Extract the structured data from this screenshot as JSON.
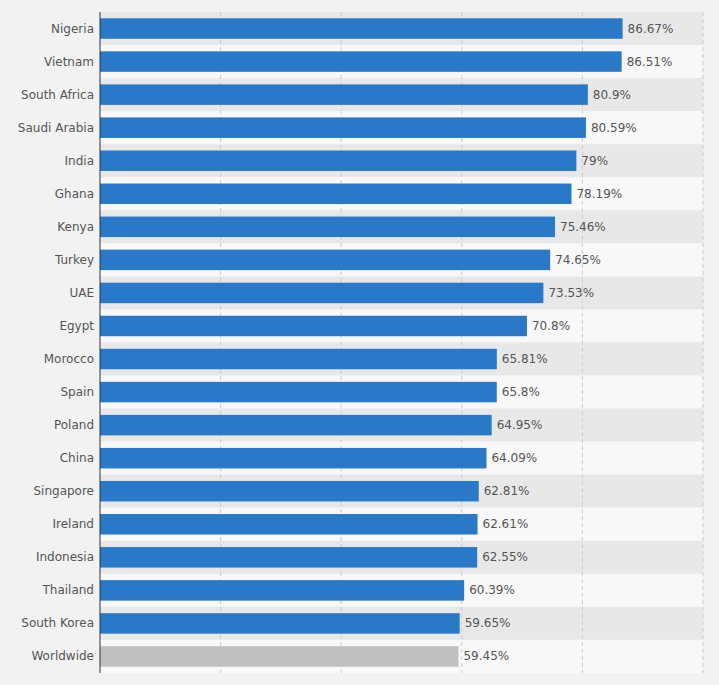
{
  "chart_data": {
    "type": "bar",
    "orientation": "horizontal",
    "categories": [
      "Nigeria",
      "Vietnam",
      "South Africa",
      "Saudi Arabia",
      "India",
      "Ghana",
      "Kenya",
      "Turkey",
      "UAE",
      "Egypt",
      "Morocco",
      "Spain",
      "Poland",
      "China",
      "Singapore",
      "Ireland",
      "Indonesia",
      "Thailand",
      "South Korea",
      "Worldwide"
    ],
    "values": [
      86.67,
      86.51,
      80.9,
      80.59,
      79.0,
      78.19,
      75.46,
      74.65,
      73.53,
      70.8,
      65.81,
      65.8,
      64.95,
      64.09,
      62.81,
      62.61,
      62.55,
      60.39,
      59.65,
      59.45
    ],
    "value_labels": [
      "86.67%",
      "86.51%",
      "80.9%",
      "80.59%",
      "79%",
      "78.19%",
      "75.46%",
      "74.65%",
      "73.53%",
      "70.8%",
      "65.81%",
      "65.8%",
      "64.95%",
      "64.09%",
      "62.81%",
      "62.61%",
      "62.55%",
      "60.39%",
      "59.65%",
      "59.45%"
    ],
    "colors": [
      "#2979c8",
      "#2979c8",
      "#2979c8",
      "#2979c8",
      "#2979c8",
      "#2979c8",
      "#2979c8",
      "#2979c8",
      "#2979c8",
      "#2979c8",
      "#2979c8",
      "#2979c8",
      "#2979c8",
      "#2979c8",
      "#2979c8",
      "#2979c8",
      "#2979c8",
      "#2979c8",
      "#2979c8",
      "#c0c0c0"
    ],
    "xlim": [
      0,
      100
    ],
    "xticks": [
      20,
      40,
      60,
      80,
      100
    ],
    "grid": true,
    "data_labels": true,
    "tick_labels": "y"
  }
}
